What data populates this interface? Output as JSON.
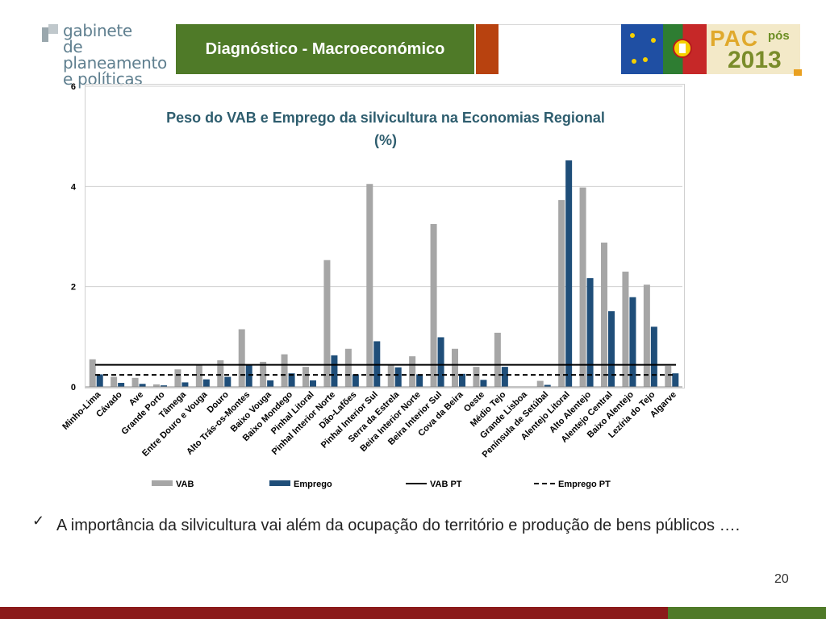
{
  "logo": {
    "line1": "gabinete",
    "line2": "de planeamento",
    "line3": "e políticas"
  },
  "header": {
    "title": "Diagnóstico - Macroeconómico"
  },
  "badge": {
    "pac": "PAC",
    "pos": "pós",
    "year": "2013"
  },
  "chart_data": {
    "type": "bar",
    "title": "Peso do VAB e Emprego da silvicultura na Economias Regional (%)",
    "categories": [
      "Minho-Lima",
      "Cávado",
      "Ave",
      "Grande Porto",
      "Tâmega",
      "Entre Douro e Vouga",
      "Douro",
      "Alto Trás-os-Montes",
      "Baixo Vouga",
      "Baixo Mondego",
      "Pinhal Litoral",
      "Pinhal Interior Norte",
      "Dão-Lafões",
      "Pinhal Interior Sul",
      "Serra da Estrela",
      "Beira Interior Norte",
      "Beira Interior Sul",
      "Cova da Beira",
      "Oeste",
      "Médio Tejo",
      "Grande Lisboa",
      "Península de Setúbal",
      "Alentejo Litoral",
      "Alto Alentejo",
      "Alentejo Central",
      "Baixo Alentejo",
      "Lezíria do Tejo",
      "Algarve"
    ],
    "series": [
      {
        "name": "VAB",
        "color": "#a6a6a6",
        "values": [
          0.55,
          0.2,
          0.18,
          0.05,
          0.35,
          0.45,
          0.53,
          1.15,
          0.5,
          0.65,
          0.4,
          2.53,
          0.76,
          4.05,
          0.45,
          0.61,
          3.25,
          0.76,
          0.4,
          1.08,
          0.0,
          0.12,
          3.73,
          3.98,
          2.88,
          2.3,
          2.04,
          0.42
        ]
      },
      {
        "name": "Emprego",
        "color": "#1f4e79",
        "values": [
          0.25,
          0.08,
          0.06,
          0.03,
          0.09,
          0.15,
          0.2,
          0.45,
          0.13,
          0.27,
          0.13,
          0.63,
          0.25,
          0.91,
          0.39,
          0.25,
          0.99,
          0.26,
          0.14,
          0.4,
          0.0,
          0.04,
          4.52,
          2.17,
          1.51,
          1.79,
          1.2,
          0.27
        ]
      }
    ],
    "reference_lines": [
      {
        "name": "VAB PT",
        "value": 0.44,
        "style": "solid",
        "color": "#000000"
      },
      {
        "name": "Emprego PT",
        "value": 0.24,
        "style": "dashed",
        "color": "#000000"
      }
    ],
    "ylim": [
      0,
      6
    ],
    "yticks": [
      "0",
      "2",
      "4",
      "6"
    ],
    "ytick_values": [
      0,
      2,
      4,
      6
    ],
    "grid": true,
    "legend_position": "bottom"
  },
  "bullet": {
    "check": "✓",
    "text": "A importância da silvicultura vai além da ocupação do território e produção de bens públicos …."
  },
  "page": {
    "number": "20"
  }
}
